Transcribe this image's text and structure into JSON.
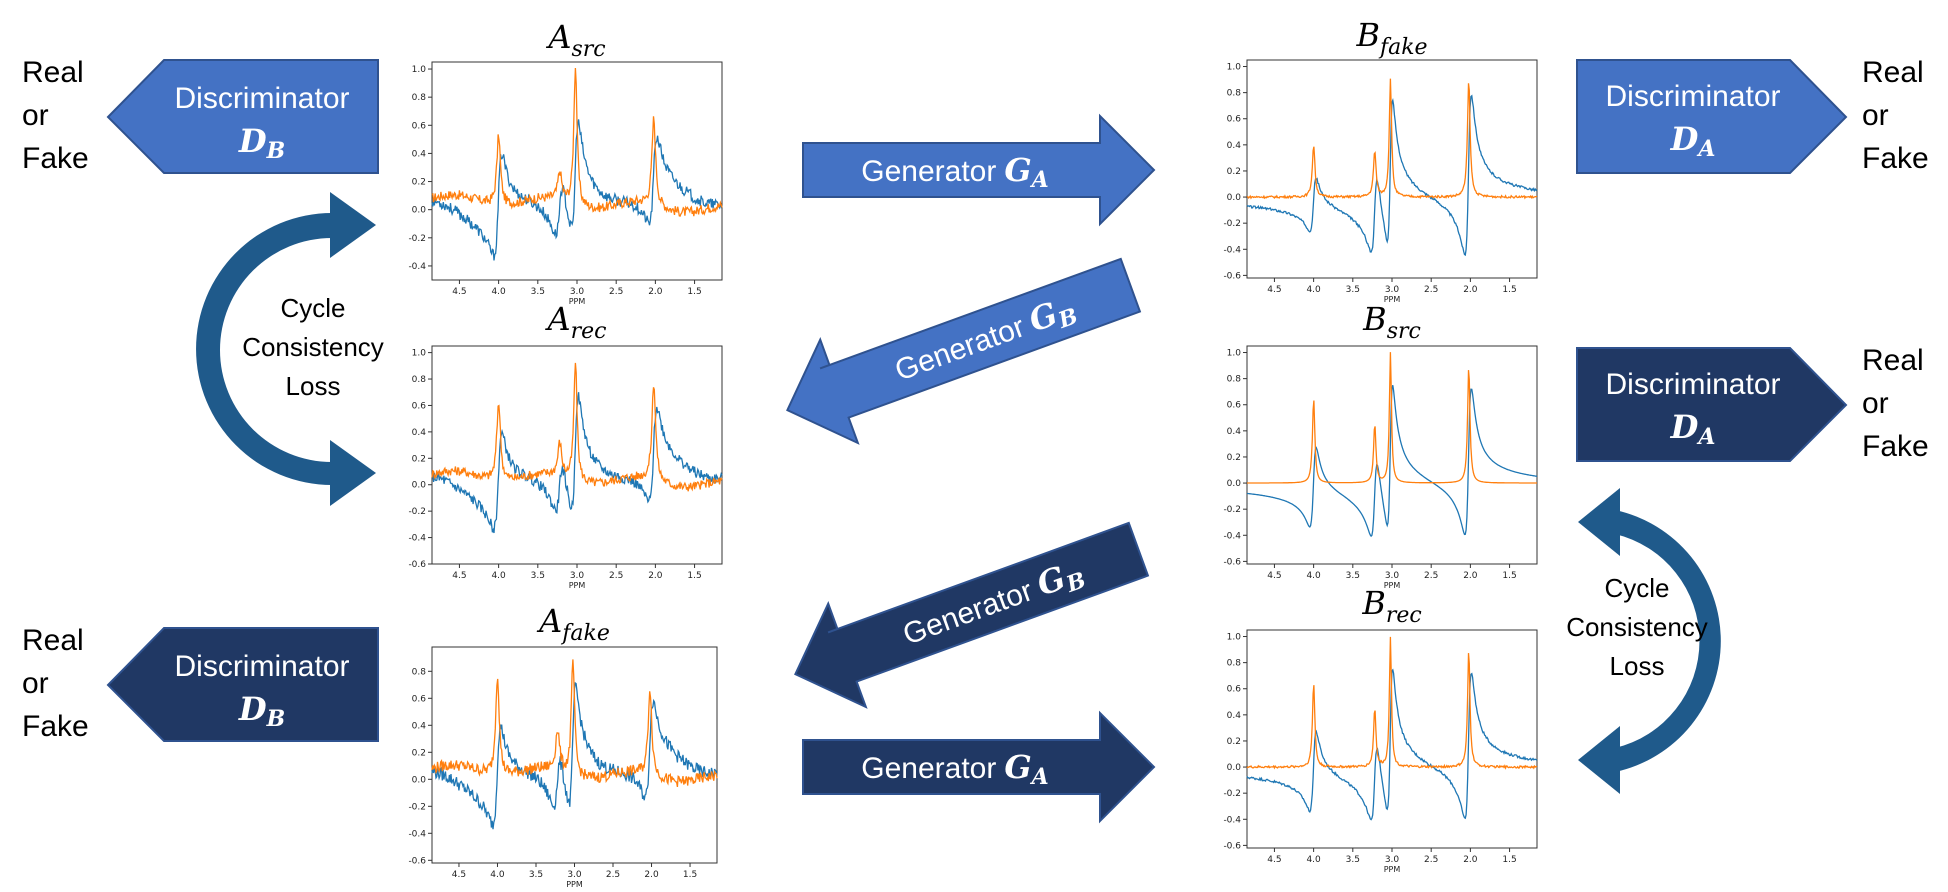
{
  "colors": {
    "light_blue": "#4472C4",
    "dark_navy": "#203864",
    "cycle_arrow": "#1F5A8B",
    "trace_orange": "#FF7F0E",
    "trace_blue": "#1F77B4",
    "arrow_border": "#2F528F"
  },
  "real_fake": [
    "Real",
    "or",
    "Fake"
  ],
  "cycle_label": [
    "Cycle",
    "Consistency",
    "Loss"
  ],
  "discriminator_word": "Discriminator",
  "generator_word": "Generator",
  "subscripts": {
    "A": "A",
    "B": "B"
  },
  "plots": {
    "A_src": {
      "title_main": "A",
      "title_sub": "src"
    },
    "A_rec": {
      "title_main": "A",
      "title_sub": "rec"
    },
    "A_fake": {
      "title_main": "A",
      "title_sub": "fake"
    },
    "B_fake": {
      "title_main": "B",
      "title_sub": "fake"
    },
    "B_src": {
      "title_main": "B",
      "title_sub": "src"
    },
    "B_rec": {
      "title_main": "B",
      "title_sub": "rec"
    }
  },
  "chart_data": [
    {
      "type": "line",
      "panel": "A_src",
      "xlabel": "PPM",
      "x_ticks": [
        "4.5",
        "4.0",
        "3.5",
        "3.0",
        "2.5",
        "2.0",
        "1.5"
      ],
      "y_ticks": [
        "-0.4",
        "-0.2",
        "0.0",
        "0.2",
        "0.4",
        "0.6",
        "0.8",
        "1.0"
      ],
      "xlim": [
        4.85,
        1.15
      ],
      "ylim": [
        -0.5,
        1.05
      ],
      "noise": 0.05,
      "wave": 0.05,
      "peaks": [
        [
          4.0,
          0.5,
          0.028
        ],
        [
          3.22,
          0.2,
          0.03
        ],
        [
          3.02,
          1.0,
          0.025
        ],
        [
          2.02,
          0.62,
          0.028
        ]
      ],
      "dispersive": [
        [
          4.0,
          0.35,
          0.05
        ],
        [
          3.22,
          0.2,
          0.05
        ],
        [
          3.02,
          0.4,
          0.045
        ],
        [
          2.02,
          0.3,
          0.05
        ]
      ],
      "blue_baseline": 0.12
    },
    {
      "type": "line",
      "panel": "A_rec",
      "xlabel": "PPM",
      "x_ticks": [
        "4.5",
        "4.0",
        "3.5",
        "3.0",
        "2.5",
        "2.0",
        "1.5"
      ],
      "y_ticks": [
        "-0.6",
        "-0.4",
        "-0.2",
        "0.0",
        "0.2",
        "0.4",
        "0.6",
        "0.8",
        "1.0"
      ],
      "xlim": [
        4.85,
        1.15
      ],
      "ylim": [
        -0.6,
        1.05
      ],
      "noise": 0.05,
      "wave": 0.05,
      "peaks": [
        [
          4.0,
          0.6,
          0.028
        ],
        [
          3.22,
          0.25,
          0.03
        ],
        [
          3.02,
          0.9,
          0.025
        ],
        [
          2.02,
          0.75,
          0.028
        ]
      ],
      "dispersive": [
        [
          4.0,
          0.35,
          0.05
        ],
        [
          3.22,
          0.2,
          0.05
        ],
        [
          3.02,
          0.45,
          0.045
        ],
        [
          2.02,
          0.35,
          0.05
        ]
      ],
      "blue_baseline": 0.12
    },
    {
      "type": "line",
      "panel": "A_fake",
      "xlabel": "PPM",
      "x_ticks": [
        "4.5",
        "4.0",
        "3.5",
        "3.0",
        "2.5",
        "2.0",
        "1.5"
      ],
      "y_ticks": [
        "-0.6",
        "-0.4",
        "-0.2",
        "0.0",
        "0.2",
        "0.4",
        "0.6",
        "0.8"
      ],
      "xlim": [
        4.85,
        1.15
      ],
      "ylim": [
        -0.62,
        0.98
      ],
      "noise": 0.06,
      "wave": 0.05,
      "peaks": [
        [
          4.0,
          0.75,
          0.028
        ],
        [
          3.22,
          0.3,
          0.03
        ],
        [
          3.02,
          0.85,
          0.025
        ],
        [
          2.02,
          0.65,
          0.028
        ]
      ],
      "dispersive": [
        [
          4.0,
          0.35,
          0.05
        ],
        [
          3.22,
          0.2,
          0.05
        ],
        [
          3.02,
          0.45,
          0.045
        ],
        [
          2.02,
          0.35,
          0.05
        ]
      ],
      "blue_baseline": 0.12
    },
    {
      "type": "line",
      "panel": "B_fake",
      "xlabel": "PPM",
      "x_ticks": [
        "4.5",
        "4.0",
        "3.5",
        "3.0",
        "2.5",
        "2.0",
        "1.5"
      ],
      "y_ticks": [
        "-0.6",
        "-0.4",
        "-0.2",
        "0.0",
        "0.2",
        "0.4",
        "0.6",
        "0.8",
        "1.0"
      ],
      "xlim": [
        4.85,
        1.15
      ],
      "ylim": [
        -0.62,
        1.05
      ],
      "noise": 0.012,
      "wave": 0.0,
      "peaks": [
        [
          4.0,
          0.4,
          0.02
        ],
        [
          3.22,
          0.35,
          0.02
        ],
        [
          3.02,
          0.9,
          0.018
        ],
        [
          2.02,
          0.9,
          0.02
        ]
      ],
      "dispersive": [
        [
          4.0,
          0.2,
          0.04
        ],
        [
          3.22,
          0.3,
          0.04
        ],
        [
          3.02,
          0.55,
          0.035
        ],
        [
          2.02,
          0.6,
          0.04
        ]
      ],
      "blue_baseline": 0.0
    },
    {
      "type": "line",
      "panel": "B_src",
      "xlabel": "PPM",
      "x_ticks": [
        "4.5",
        "4.0",
        "3.5",
        "3.0",
        "2.5",
        "2.0",
        "1.5"
      ],
      "y_ticks": [
        "-0.6",
        "-0.4",
        "-0.2",
        "0.0",
        "0.2",
        "0.4",
        "0.6",
        "0.8",
        "1.0"
      ],
      "xlim": [
        4.85,
        1.15
      ],
      "ylim": [
        -0.62,
        1.05
      ],
      "noise": 0.0,
      "wave": 0.0,
      "peaks": [
        [
          4.0,
          0.65,
          0.018
        ],
        [
          3.22,
          0.45,
          0.018
        ],
        [
          3.02,
          1.0,
          0.016
        ],
        [
          2.02,
          0.9,
          0.018
        ]
      ],
      "dispersive": [
        [
          4.0,
          0.3,
          0.04
        ],
        [
          3.22,
          0.3,
          0.04
        ],
        [
          3.02,
          0.55,
          0.035
        ],
        [
          2.02,
          0.55,
          0.04
        ]
      ],
      "blue_baseline": 0.0
    },
    {
      "type": "line",
      "panel": "B_rec",
      "xlabel": "PPM",
      "x_ticks": [
        "4.5",
        "4.0",
        "3.5",
        "3.0",
        "2.5",
        "2.0",
        "1.5"
      ],
      "y_ticks": [
        "-0.6",
        "-0.4",
        "-0.2",
        "0.0",
        "0.2",
        "0.4",
        "0.6",
        "0.8",
        "1.0"
      ],
      "xlim": [
        4.85,
        1.15
      ],
      "ylim": [
        -0.62,
        1.05
      ],
      "noise": 0.012,
      "wave": 0.0,
      "peaks": [
        [
          4.0,
          0.65,
          0.018
        ],
        [
          3.22,
          0.45,
          0.018
        ],
        [
          3.02,
          1.0,
          0.016
        ],
        [
          2.02,
          0.9,
          0.018
        ]
      ],
      "dispersive": [
        [
          4.0,
          0.3,
          0.04
        ],
        [
          3.22,
          0.3,
          0.04
        ],
        [
          3.02,
          0.55,
          0.035
        ],
        [
          2.02,
          0.55,
          0.04
        ]
      ],
      "blue_baseline": 0.0
    }
  ]
}
